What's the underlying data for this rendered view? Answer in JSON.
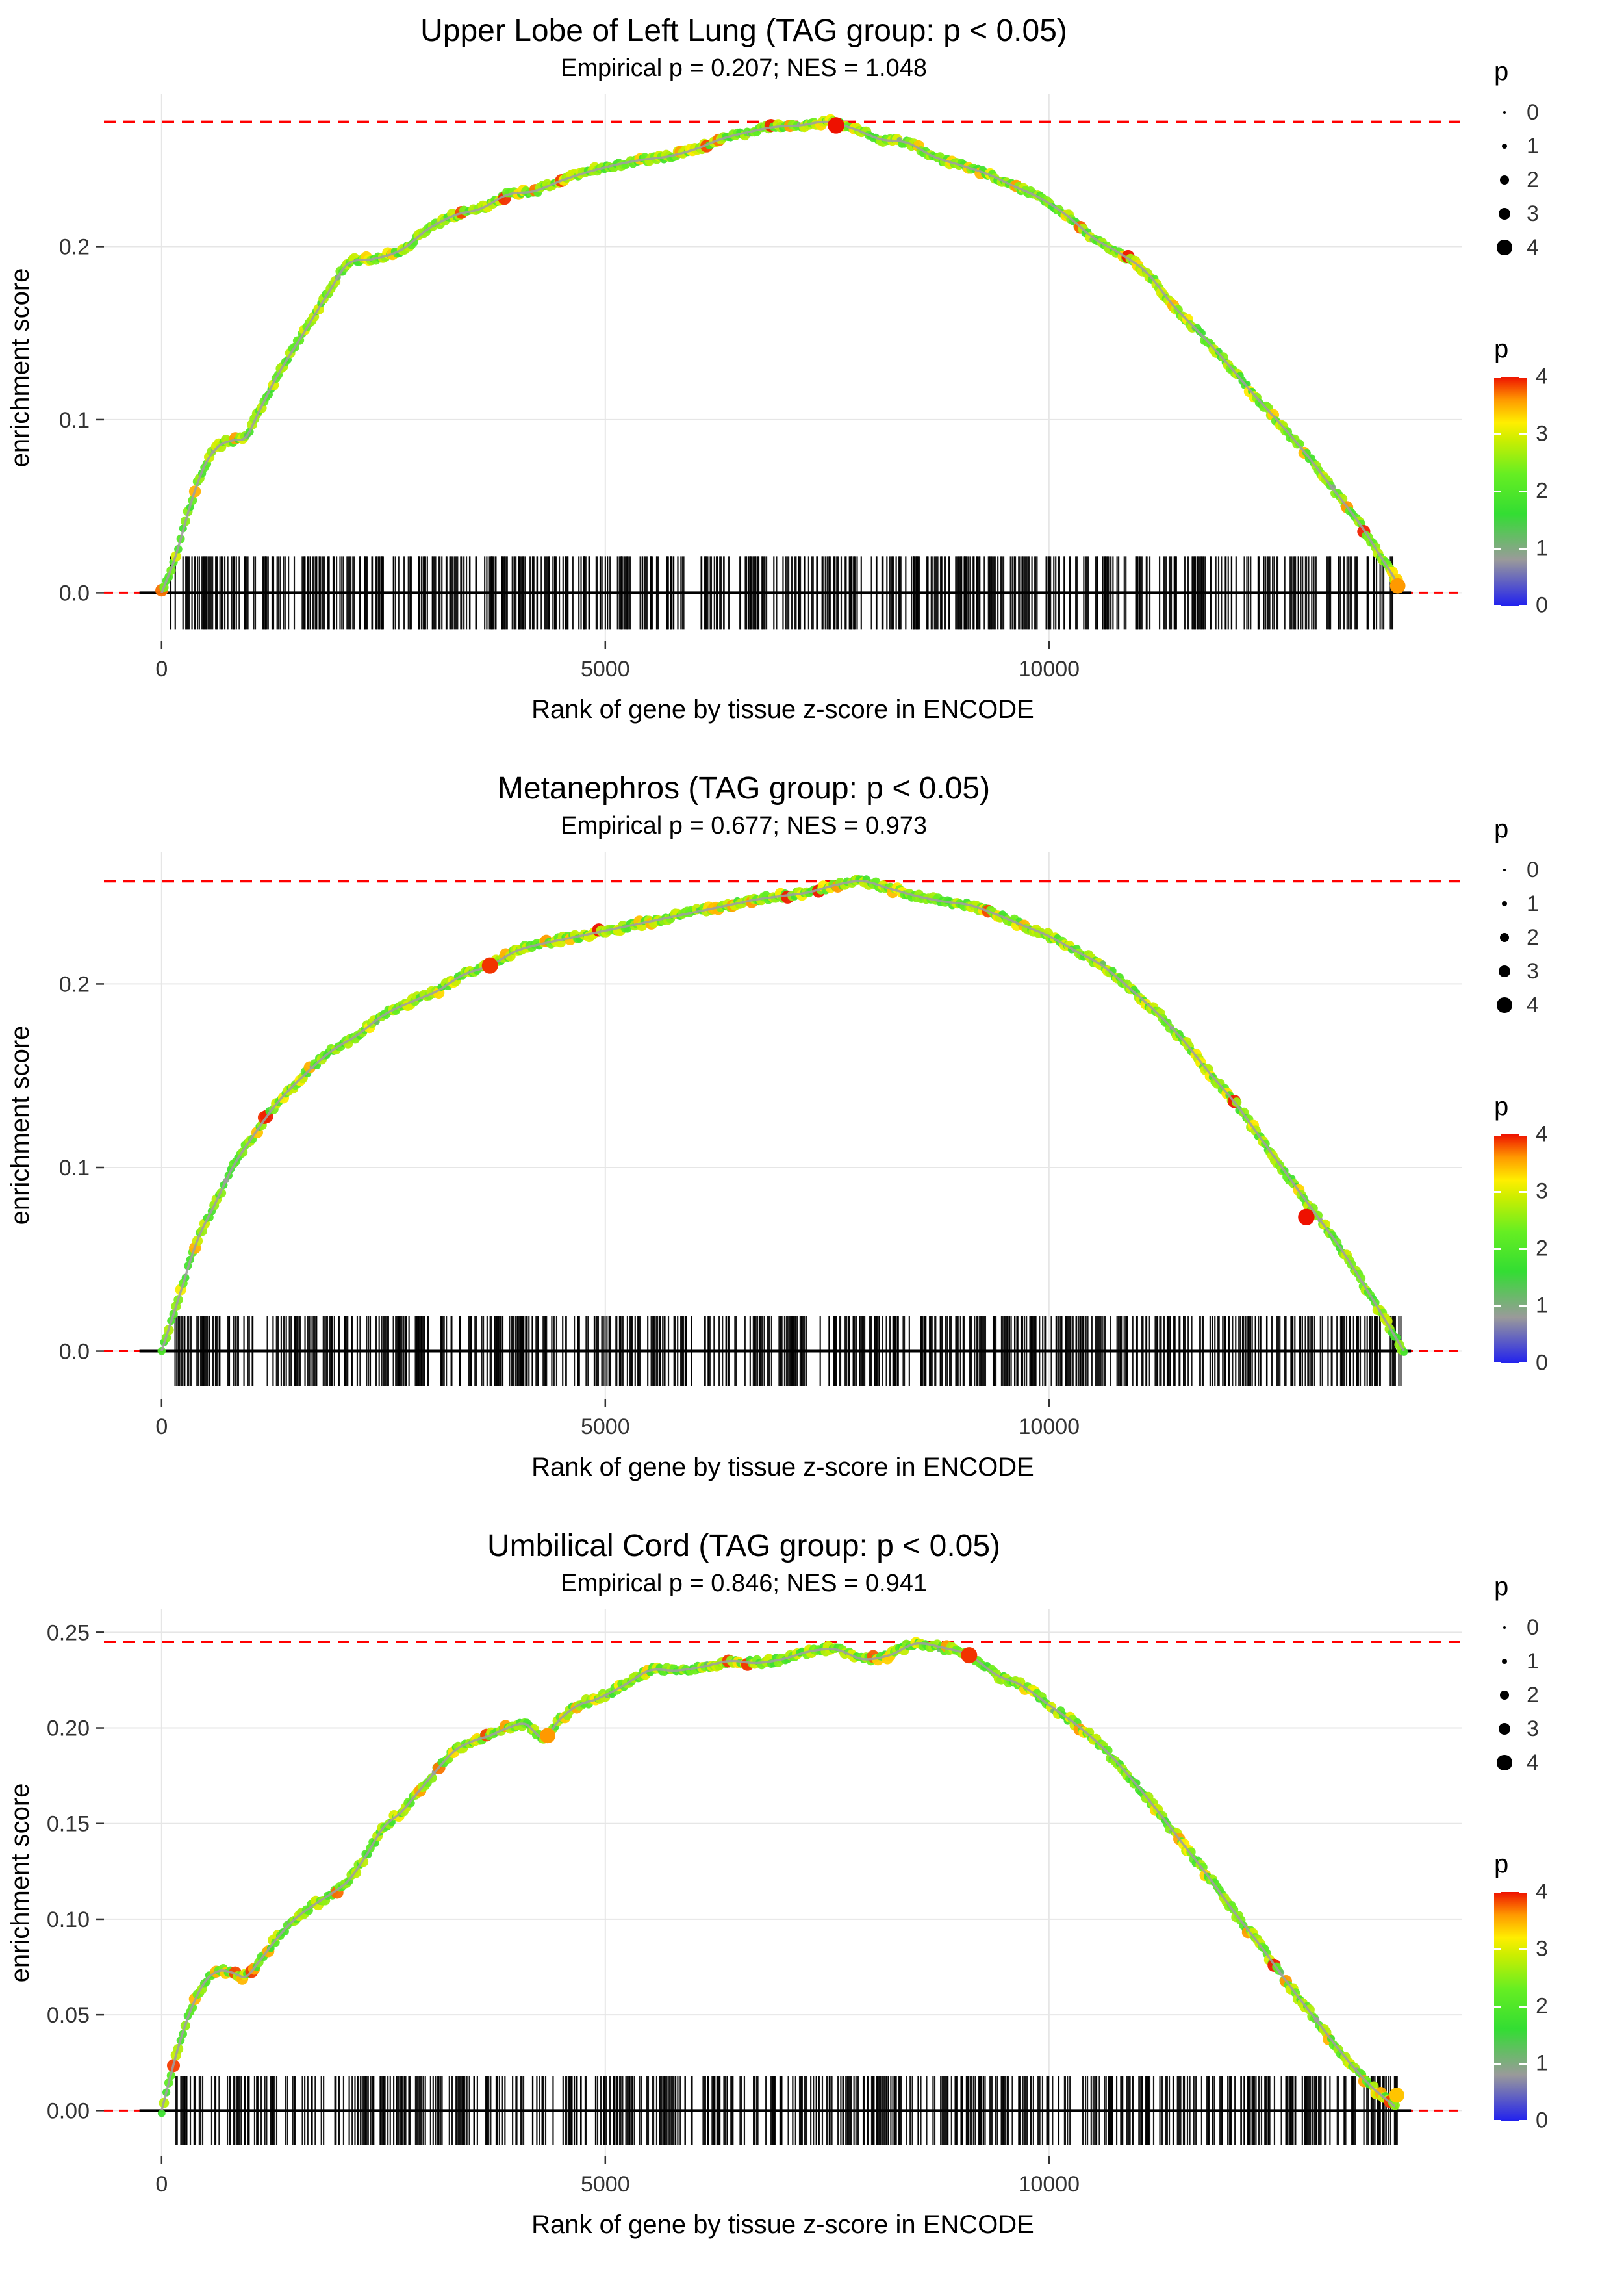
{
  "figure": {
    "background": "#ffffff",
    "grid_color": "#e6e6e6",
    "dashed_line_color": "#ff0000",
    "zero_line_color": "#000000",
    "curve_line_color": "#9f9f9f",
    "tick_label_color": "#333333"
  },
  "legend_size": {
    "title": "p",
    "entries": [
      {
        "label": "0",
        "p": 0
      },
      {
        "label": "1",
        "p": 1
      },
      {
        "label": "2",
        "p": 2
      },
      {
        "label": "3",
        "p": 3
      },
      {
        "label": "4",
        "p": 4
      }
    ]
  },
  "legend_color": {
    "title": "p",
    "ticks": [
      {
        "label": "4",
        "v": 4
      },
      {
        "label": "3",
        "v": 3
      },
      {
        "label": "2",
        "v": 2
      },
      {
        "label": "1",
        "v": 1
      },
      {
        "label": "0",
        "v": 0
      }
    ],
    "stops": [
      {
        "v": 0.0,
        "c": "#2222ee"
      },
      {
        "v": 0.8,
        "c": "#9a9a9a"
      },
      {
        "v": 1.6,
        "c": "#33dd33"
      },
      {
        "v": 2.3,
        "c": "#66ee22"
      },
      {
        "v": 2.9,
        "c": "#ccee00"
      },
      {
        "v": 3.2,
        "c": "#ffee00"
      },
      {
        "v": 3.6,
        "c": "#ff9900"
      },
      {
        "v": 4.0,
        "c": "#ee1100"
      }
    ]
  },
  "chart_data": [
    {
      "type": "line",
      "title": "Upper Lobe of Left Lung (TAG group: p < 0.05)",
      "subtitle": "Empirical p = 0.207; NES = 1.048",
      "empirical_p": 0.207,
      "nes": 1.048,
      "xlabel": "Rank of gene by tissue z-score in ENCODE",
      "ylabel": "enrichment score",
      "xticks": [
        {
          "v": 0,
          "label": "0"
        },
        {
          "v": 5000,
          "label": "5000"
        },
        {
          "v": 10000,
          "label": "10000"
        }
      ],
      "yticks": [
        {
          "v": 0.0,
          "label": "0.0"
        },
        {
          "v": 0.1,
          "label": "0.1"
        },
        {
          "v": 0.2,
          "label": "0.2"
        }
      ],
      "xlim": [
        -650,
        14650
      ],
      "ylim": [
        -0.028,
        0.288
      ],
      "max_line_y": 0.272,
      "zero_line_y": 0.0,
      "rug": {
        "count": 620,
        "xmin": 90,
        "xmax": 13960,
        "half_height": 0.021
      },
      "seed_rug": 101,
      "seed_dots": 7,
      "highlights": [
        {
          "x": 7600,
          "y": 0.27,
          "p": 4.0
        },
        {
          "x": 13930,
          "y": 0.004,
          "p": 3.6
        }
      ],
      "curve": [
        [
          0,
          0.0
        ],
        [
          150,
          0.02
        ],
        [
          350,
          0.055
        ],
        [
          500,
          0.075
        ],
        [
          650,
          0.085
        ],
        [
          800,
          0.088
        ],
        [
          950,
          0.09
        ],
        [
          1100,
          0.105
        ],
        [
          1300,
          0.125
        ],
        [
          1600,
          0.15
        ],
        [
          1900,
          0.175
        ],
        [
          2100,
          0.19
        ],
        [
          2400,
          0.193
        ],
        [
          2700,
          0.198
        ],
        [
          3000,
          0.21
        ],
        [
          3300,
          0.218
        ],
        [
          3600,
          0.222
        ],
        [
          3900,
          0.23
        ],
        [
          4200,
          0.232
        ],
        [
          4500,
          0.238
        ],
        [
          4800,
          0.243
        ],
        [
          5100,
          0.247
        ],
        [
          5400,
          0.25
        ],
        [
          5700,
          0.252
        ],
        [
          6000,
          0.256
        ],
        [
          6300,
          0.262
        ],
        [
          6600,
          0.266
        ],
        [
          6900,
          0.269
        ],
        [
          7200,
          0.27
        ],
        [
          7500,
          0.272
        ],
        [
          7800,
          0.268
        ],
        [
          8100,
          0.262
        ],
        [
          8400,
          0.26
        ],
        [
          8700,
          0.252
        ],
        [
          9000,
          0.247
        ],
        [
          9300,
          0.242
        ],
        [
          9600,
          0.235
        ],
        [
          9900,
          0.228
        ],
        [
          10200,
          0.218
        ],
        [
          10500,
          0.205
        ],
        [
          10800,
          0.196
        ],
        [
          11100,
          0.185
        ],
        [
          11400,
          0.166
        ],
        [
          11700,
          0.15
        ],
        [
          12000,
          0.133
        ],
        [
          12300,
          0.115
        ],
        [
          12600,
          0.098
        ],
        [
          12900,
          0.08
        ],
        [
          13200,
          0.06
        ],
        [
          13500,
          0.04
        ],
        [
          13750,
          0.02
        ],
        [
          13950,
          0.004
        ]
      ]
    },
    {
      "type": "line",
      "title": "Metanephros (TAG group: p < 0.05)",
      "subtitle": "Empirical p = 0.677; NES = 0.973",
      "empirical_p": 0.677,
      "nes": 0.973,
      "xlabel": "Rank of gene by tissue z-score in ENCODE",
      "ylabel": "enrichment score",
      "xticks": [
        {
          "v": 0,
          "label": "0"
        },
        {
          "v": 5000,
          "label": "5000"
        },
        {
          "v": 10000,
          "label": "10000"
        }
      ],
      "yticks": [
        {
          "v": 0.0,
          "label": "0.0"
        },
        {
          "v": 0.1,
          "label": "0.1"
        },
        {
          "v": 0.2,
          "label": "0.2"
        }
      ],
      "xlim": [
        -650,
        14650
      ],
      "ylim": [
        -0.026,
        0.272
      ],
      "max_line_y": 0.256,
      "zero_line_y": 0.0,
      "rug": {
        "count": 620,
        "xmin": 120,
        "xmax": 13980,
        "half_height": 0.019
      },
      "seed_rug": 202,
      "seed_dots": 17,
      "highlights": [
        {
          "x": 12900,
          "y": 0.073,
          "p": 4.0
        },
        {
          "x": 3700,
          "y": 0.21,
          "p": 3.9
        }
      ],
      "curve": [
        [
          0,
          0.0
        ],
        [
          200,
          0.03
        ],
        [
          400,
          0.06
        ],
        [
          600,
          0.08
        ],
        [
          800,
          0.1
        ],
        [
          1000,
          0.115
        ],
        [
          1300,
          0.135
        ],
        [
          1600,
          0.15
        ],
        [
          1900,
          0.163
        ],
        [
          2200,
          0.172
        ],
        [
          2500,
          0.183
        ],
        [
          2800,
          0.19
        ],
        [
          3100,
          0.196
        ],
        [
          3400,
          0.205
        ],
        [
          3700,
          0.21
        ],
        [
          4000,
          0.218
        ],
        [
          4300,
          0.222
        ],
        [
          4600,
          0.225
        ],
        [
          4900,
          0.228
        ],
        [
          5200,
          0.231
        ],
        [
          5500,
          0.234
        ],
        [
          5800,
          0.237
        ],
        [
          6100,
          0.24
        ],
        [
          6400,
          0.243
        ],
        [
          6700,
          0.246
        ],
        [
          7000,
          0.248
        ],
        [
          7300,
          0.25
        ],
        [
          7600,
          0.254
        ],
        [
          7900,
          0.256
        ],
        [
          8200,
          0.252
        ],
        [
          8500,
          0.248
        ],
        [
          8800,
          0.245
        ],
        [
          9100,
          0.243
        ],
        [
          9400,
          0.238
        ],
        [
          9700,
          0.232
        ],
        [
          10000,
          0.226
        ],
        [
          10300,
          0.218
        ],
        [
          10600,
          0.21
        ],
        [
          10900,
          0.198
        ],
        [
          11200,
          0.185
        ],
        [
          11500,
          0.17
        ],
        [
          11800,
          0.152
        ],
        [
          12100,
          0.135
        ],
        [
          12400,
          0.115
        ],
        [
          12700,
          0.095
        ],
        [
          13000,
          0.075
        ],
        [
          13300,
          0.055
        ],
        [
          13600,
          0.032
        ],
        [
          13900,
          0.008
        ],
        [
          14000,
          0.0
        ]
      ]
    },
    {
      "type": "line",
      "title": "Umbilical Cord (TAG group: p < 0.05)",
      "subtitle": "Empirical p = 0.846; NES = 0.941",
      "empirical_p": 0.846,
      "nes": 0.941,
      "xlabel": "Rank of gene by tissue z-score in ENCODE",
      "ylabel": "enrichment score",
      "xticks": [
        {
          "v": 0,
          "label": "0"
        },
        {
          "v": 5000,
          "label": "5000"
        },
        {
          "v": 10000,
          "label": "10000"
        }
      ],
      "yticks": [
        {
          "v": 0.0,
          "label": "0.00"
        },
        {
          "v": 0.05,
          "label": "0.05"
        },
        {
          "v": 0.1,
          "label": "0.10"
        },
        {
          "v": 0.15,
          "label": "0.15"
        },
        {
          "v": 0.2,
          "label": "0.20"
        },
        {
          "v": 0.25,
          "label": "0.25"
        }
      ],
      "xlim": [
        -650,
        14650
      ],
      "ylim": [
        -0.024,
        0.262
      ],
      "max_line_y": 0.245,
      "zero_line_y": 0.0,
      "rug": {
        "count": 600,
        "xmin": 160,
        "xmax": 13960,
        "half_height": 0.018
      },
      "seed_rug": 303,
      "seed_dots": 27,
      "highlights": [
        {
          "x": 9100,
          "y": 0.238,
          "p": 3.9
        },
        {
          "x": 4350,
          "y": 0.196,
          "p": 3.6
        },
        {
          "x": 13920,
          "y": 0.008,
          "p": 3.4
        }
      ],
      "curve": [
        [
          0,
          0.0
        ],
        [
          200,
          0.035
        ],
        [
          350,
          0.055
        ],
        [
          500,
          0.068
        ],
        [
          650,
          0.073
        ],
        [
          800,
          0.072
        ],
        [
          950,
          0.07
        ],
        [
          1100,
          0.078
        ],
        [
          1300,
          0.09
        ],
        [
          1500,
          0.1
        ],
        [
          1700,
          0.107
        ],
        [
          1900,
          0.113
        ],
        [
          2100,
          0.12
        ],
        [
          2300,
          0.133
        ],
        [
          2500,
          0.148
        ],
        [
          2700,
          0.156
        ],
        [
          2900,
          0.167
        ],
        [
          3100,
          0.178
        ],
        [
          3300,
          0.188
        ],
        [
          3500,
          0.193
        ],
        [
          3700,
          0.196
        ],
        [
          3900,
          0.2
        ],
        [
          4100,
          0.202
        ],
        [
          4300,
          0.195
        ],
        [
          4500,
          0.205
        ],
        [
          4700,
          0.212
        ],
        [
          4900,
          0.215
        ],
        [
          5200,
          0.222
        ],
        [
          5500,
          0.23
        ],
        [
          5800,
          0.23
        ],
        [
          6100,
          0.232
        ],
        [
          6400,
          0.235
        ],
        [
          6700,
          0.234
        ],
        [
          7000,
          0.236
        ],
        [
          7300,
          0.24
        ],
        [
          7600,
          0.241
        ],
        [
          7900,
          0.236
        ],
        [
          8200,
          0.238
        ],
        [
          8500,
          0.244
        ],
        [
          8800,
          0.242
        ],
        [
          9100,
          0.238
        ],
        [
          9400,
          0.228
        ],
        [
          9700,
          0.222
        ],
        [
          10000,
          0.212
        ],
        [
          10300,
          0.202
        ],
        [
          10600,
          0.19
        ],
        [
          10900,
          0.175
        ],
        [
          11200,
          0.158
        ],
        [
          11500,
          0.14
        ],
        [
          11800,
          0.122
        ],
        [
          12100,
          0.103
        ],
        [
          12400,
          0.085
        ],
        [
          12700,
          0.066
        ],
        [
          13000,
          0.048
        ],
        [
          13300,
          0.03
        ],
        [
          13600,
          0.014
        ],
        [
          13900,
          0.002
        ]
      ]
    }
  ]
}
